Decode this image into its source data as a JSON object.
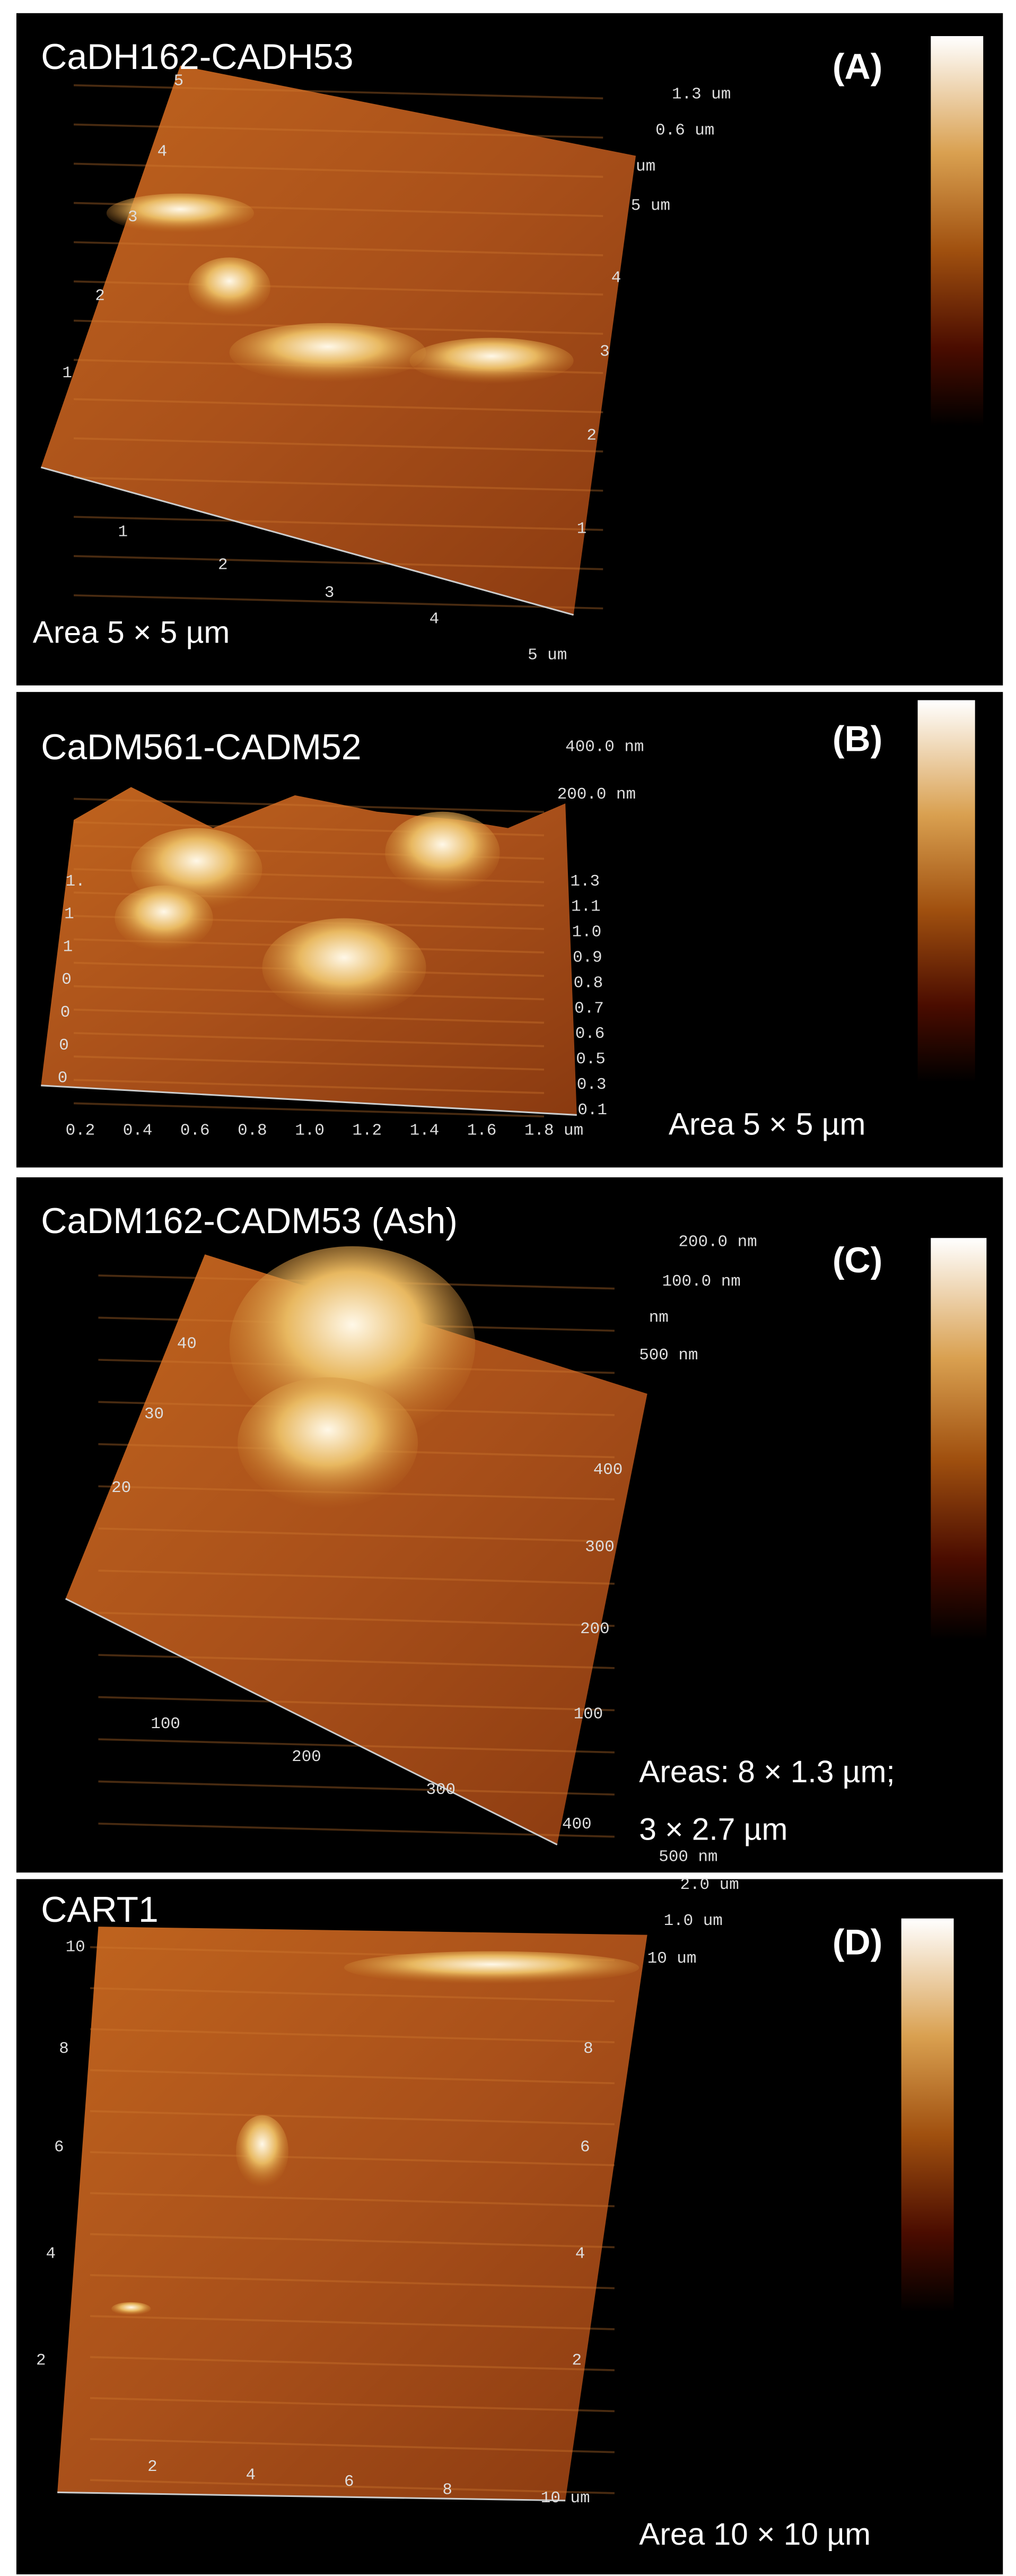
{
  "panels": [
    {
      "title": "CaDH162-CADH53",
      "letter": "(A)",
      "area": [
        "Area 5 × 5 µm"
      ],
      "z_labels": [
        "1.3 um",
        "0.6 um",
        "um"
      ],
      "right_ticks": [
        "5 um",
        "4",
        "3",
        "2",
        "1"
      ],
      "left_ticks": [
        "5",
        "4",
        "3",
        "2",
        "1"
      ],
      "bottom_ticks": [
        "1",
        "2",
        "3",
        "4",
        "5 um"
      ]
    },
    {
      "title": "CaDM561-CADM52",
      "letter": "(B)",
      "area": [
        "Area 5 × 5 µm"
      ],
      "z_labels": [
        "400.0 nm",
        "200.0 nm"
      ],
      "right_ticks": [
        "1.3",
        "1.1",
        "1.0",
        "0.9",
        "0.8",
        "0.7",
        "0.6",
        "0.5",
        "0.3",
        "0.1"
      ],
      "left_ticks": [
        "1.",
        "1",
        "1",
        "0",
        "0",
        "0",
        "0"
      ],
      "bottom_ticks": [
        "0.2",
        "0.4",
        "0.6",
        "0.8",
        "1.0",
        "1.2",
        "1.4",
        "1.6",
        "1.8 um"
      ]
    },
    {
      "title": "CaDM162-CADM53 (Ash)",
      "letter": "(C)",
      "area": [
        "Areas: 8 × 1.3 µm;",
        "3 × 2.7 µm"
      ],
      "z_labels": [
        "200.0 nm",
        "100.0 nm",
        "nm",
        "500 nm"
      ],
      "right_ticks": [
        "400",
        "300",
        "200",
        "100"
      ],
      "left_ticks": [
        "40",
        "30",
        "20"
      ],
      "bottom_ticks": [
        "100",
        "200",
        "300",
        "400",
        "500 nm"
      ]
    },
    {
      "title": "CART1",
      "letter": "(D)",
      "area": [
        "Area 10 × 10 µm"
      ],
      "z_labels": [
        "2.0 um",
        "1.0 um",
        "10 um"
      ],
      "right_ticks": [
        "8",
        "6",
        "4",
        "2"
      ],
      "left_ticks": [
        "10",
        "8",
        "6",
        "4",
        "2"
      ],
      "bottom_ticks": [
        "2",
        "4",
        "6",
        "8",
        "10 um"
      ]
    }
  ]
}
